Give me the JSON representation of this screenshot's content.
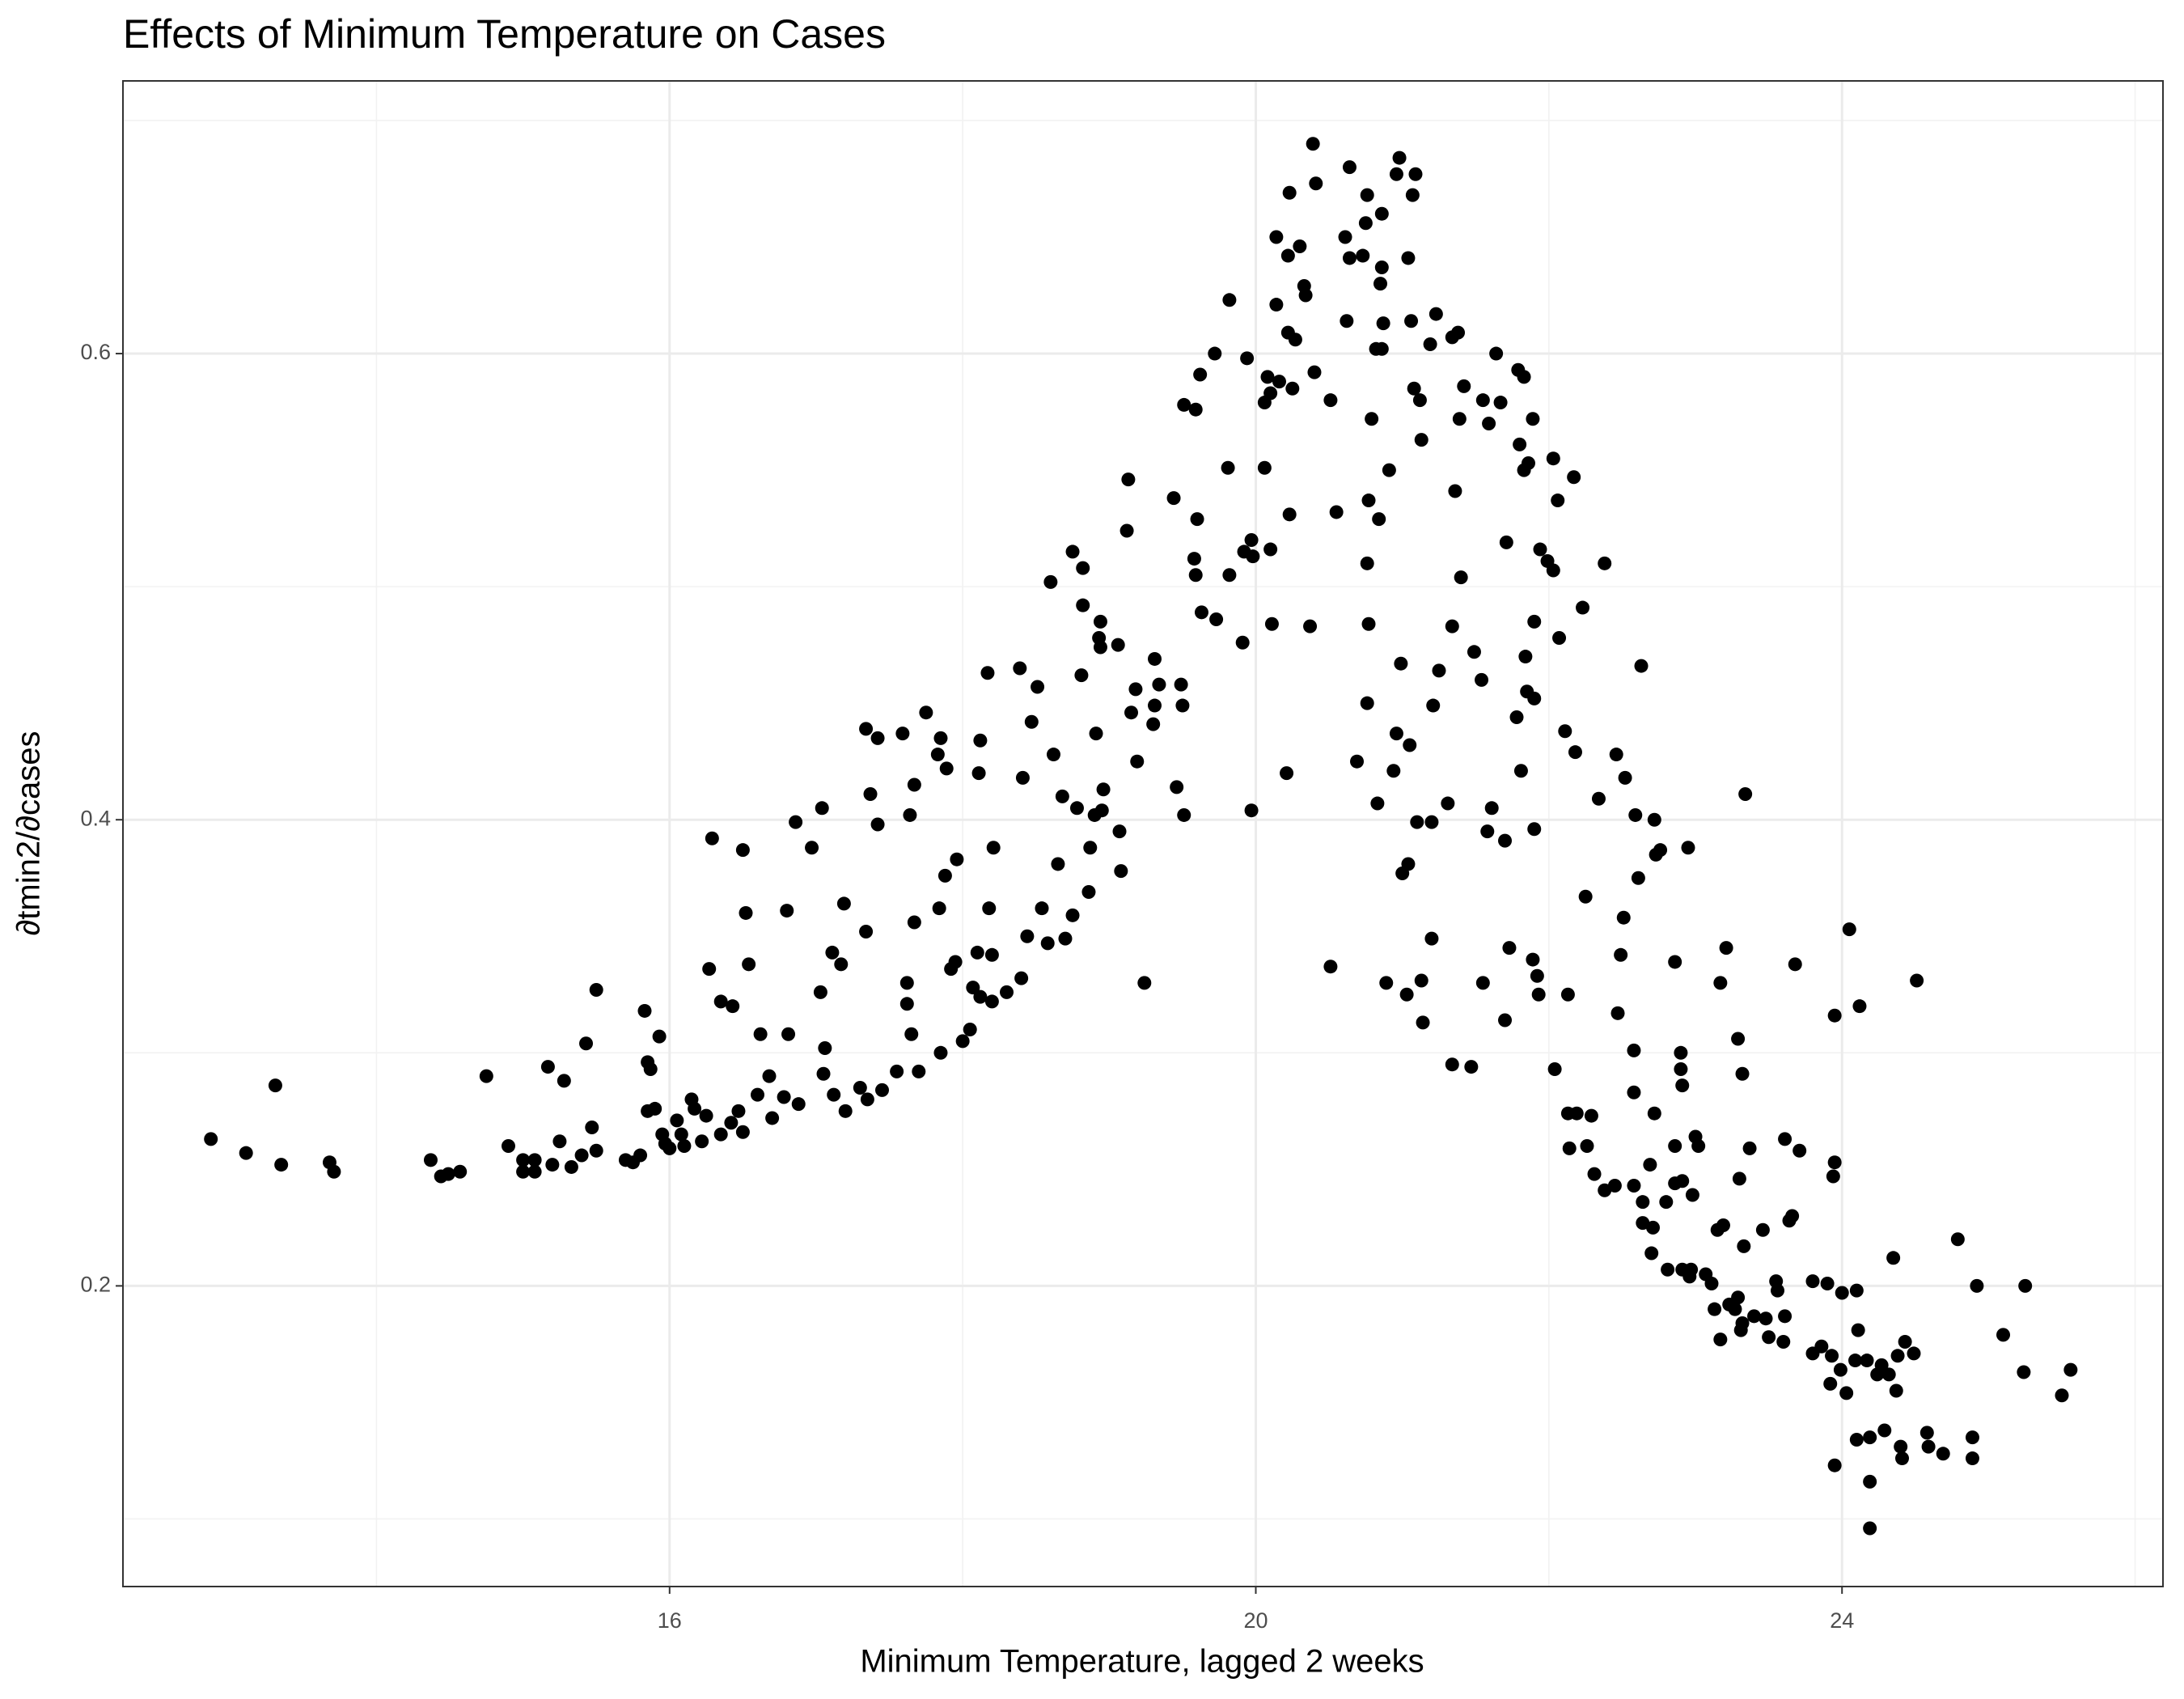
{
  "chart_data": {
    "type": "scatter",
    "title": "Effects of Minimum Temperature on Cases",
    "x_label": "Minimum Temperature, lagged 2 weeks",
    "y_label": "∂tmin2/∂cases",
    "color": "#000000",
    "grid": true,
    "xlim": [
      12.27,
      26.19
    ],
    "ylim": [
      0.071,
      0.717
    ],
    "xticks": [
      16,
      20,
      24
    ],
    "yticks": [
      0.2,
      0.4,
      0.6
    ],
    "x_minor_grid": [
      14,
      18,
      22,
      26
    ],
    "y_minor_grid": [
      0.1,
      0.3,
      0.5,
      0.7
    ],
    "x": [
      12.87,
      13.11,
      13.31,
      13.35,
      13.68,
      13.71,
      14.37,
      14.44,
      14.49,
      14.57,
      14.75,
      14.9,
      15.0,
      15.0,
      15.08,
      15.08,
      15.17,
      15.2,
      15.25,
      15.28,
      15.33,
      15.4,
      15.43,
      15.47,
      15.5,
      15.5,
      15.7,
      15.75,
      15.8,
      15.83,
      15.85,
      15.87,
      15.85,
      15.9,
      15.93,
      15.95,
      15.97,
      16.0,
      16.05,
      16.08,
      16.1,
      16.15,
      16.17,
      16.22,
      16.25,
      16.27,
      16.29,
      16.35,
      16.35,
      16.42,
      16.43,
      16.47,
      16.5,
      16.5,
      16.52,
      16.54,
      16.6,
      16.62,
      16.68,
      16.7,
      16.78,
      16.81,
      16.8,
      16.88,
      16.86,
      16.97,
      17.05,
      17.03,
      17.12,
      17.04,
      17.06,
      17.2,
      17.11,
      17.17,
      17.19,
      17.3,
      17.35,
      17.34,
      17.45,
      17.34,
      17.37,
      17.42,
      17.42,
      17.55,
      17.62,
      17.62,
      17.65,
      17.7,
      17.59,
      17.67,
      17.64,
      17.67,
      17.85,
      17.75,
      17.92,
      17.95,
      18.05,
      18.07,
      17.88,
      18.12,
      17.96,
      18.0,
      18.2,
      18.2,
      18.3,
      18.4,
      17.83,
      17.85,
      17.89,
      18.1,
      18.11,
      18.12,
      18.17,
      18.18,
      18.21,
      17.84,
      18.39,
      18.47,
      18.51,
      18.41,
      18.62,
      18.68,
      18.78,
      18.9,
      18.96,
      18.95,
      18.65,
      18.87,
      19.07,
      19.08,
      18.86,
      18.75,
      18.7,
      18.54,
      18.58,
      18.44,
      18.6,
      18.75,
      18.82,
      18.82,
      18.94,
      18.93,
      18.94,
      18.81,
      18.91,
      19.06,
      19.13,
      19.12,
      19.15,
      19.18,
      19.19,
      19.24,
      19.3,
      19.31,
      19.31,
      19.34,
      19.44,
      19.46,
      19.49,
      19.5,
      19.51,
      19.51,
      19.58,
      19.59,
      19.59,
      19.6,
      19.62,
      19.63,
      19.72,
      19.73,
      19.82,
      19.81,
      19.82,
      19.91,
      19.92,
      19.94,
      19.97,
      19.97,
      19.98,
      20.39,
      20.98,
      21.09,
      20.64,
      20.96,
      21.07,
      20.41,
      20.23,
      20.86,
      20.76,
      20.75,
      20.61,
      20.14,
      20.3,
      20.22,
      20.64,
      20.73,
      20.86,
      21.04,
      20.33,
      20.34,
      20.85,
      20.14,
      20.62,
      20.87,
      21.06,
      21.23,
      21.38,
      21.34,
      20.22,
      20.27,
      20.08,
      20.16,
      20.25,
      20.4,
      20.51,
      20.82,
      20.86,
      21.19,
      21.42,
      21.12,
      21.08,
      21.39,
      21.59,
      21.55,
      21.67,
      21.64,
      21.79,
      21.83,
      21.89,
      21.13,
      20.79,
      20.06,
      20.1,
      21.8,
      21.86,
      21.83,
      22.03,
      22.17,
      22.06,
      20.91,
      20.55,
      20.77,
      20.84,
      21.36,
      20.23,
      20.06,
      20.1,
      21.71,
      21.94,
      21.99,
      22.03,
      22.38,
      20.76,
      21.4,
      22.23,
      21.9,
      20.11,
      20.37,
      20.77,
      21.34,
      22.07,
      21.49,
      21.84,
      20.99,
      22.63,
      21.25,
      21.54,
      21.85,
      21.9,
      21.78,
      20.76,
      21.21,
      22.11,
      20.96,
      21.05,
      22.18,
      22.46,
      20.69,
      21.81,
      20.94,
      20.21,
      22.52,
      23.34,
      22.34,
      20.83,
      21.31,
      21.61,
      22.59,
      22.72,
      21.1,
      21.2,
      21.58,
      21.9,
      21.7,
      22.95,
      22.76,
      22.73,
      21.04,
      21.0,
      22.61,
      22.25,
      22.51,
      23.21,
      21.73,
      21.2,
      20.51,
      21.89,
      21.92,
      22.49,
      22.86,
      23.68,
      23.17,
      20.89,
      21.13,
      21.55,
      21.03,
      21.93,
      22.13,
      22.47,
      21.14,
      21.7,
      23.29,
      22.58,
      22.9,
      21.34,
      21.47,
      22.04,
      22.9,
      23.32,
      22.91,
      22.58,
      22.13,
      22.19,
      22.29,
      22.72,
      23.0,
      23.02,
      22.86,
      22.14,
      22.26,
      23.37,
      22.31,
      22.69,
      22.91,
      22.86,
      23.3,
      22.38,
      22.45,
      22.58,
      22.64,
      22.8,
      22.71,
      22.64,
      22.98,
      23.15,
      23.46,
      23.19,
      22.7,
      22.81,
      22.91,
      22.96,
      22.97,
      23.07,
      23.11,
      23.33,
      23.23,
      23.13,
      23.27,
      23.29,
      23.32,
      23.31,
      23.17,
      23.4,
      23.48,
      23.5,
      23.56,
      23.55,
      23.61,
      23.6,
      23.66,
      23.64,
      23.71,
      23.61,
      23.8,
      23.9,
      23.8,
      23.86,
      23.93,
      23.92,
      23.99,
      24.03,
      24.0,
      24.1,
      24.11,
      24.09,
      24.17,
      24.24,
      24.27,
      24.32,
      24.37,
      23.95,
      23.94,
      23.95,
      24.05,
      24.12,
      24.35,
      24.43,
      24.49,
      24.38,
      24.51,
      23.95,
      24.1,
      24.19,
      24.19,
      24.19,
      24.29,
      24.4,
      24.41,
      24.58,
      24.59,
      24.69,
      24.79,
      24.92,
      24.89,
      24.89,
      25.1,
      25.25,
      25.24,
      25.5,
      25.56
    ],
    "y": [
      0.263,
      0.257,
      0.286,
      0.252,
      0.253,
      0.249,
      0.254,
      0.247,
      0.248,
      0.249,
      0.29,
      0.26,
      0.254,
      0.249,
      0.249,
      0.254,
      0.294,
      0.252,
      0.262,
      0.288,
      0.251,
      0.256,
      0.304,
      0.268,
      0.327,
      0.258,
      0.254,
      0.253,
      0.256,
      0.318,
      0.296,
      0.293,
      0.275,
      0.276,
      0.307,
      0.265,
      0.261,
      0.259,
      0.271,
      0.265,
      0.26,
      0.28,
      0.276,
      0.262,
      0.273,
      0.336,
      0.392,
      0.265,
      0.322,
      0.27,
      0.32,
      0.275,
      0.266,
      0.387,
      0.36,
      0.338,
      0.282,
      0.308,
      0.29,
      0.272,
      0.281,
      0.308,
      0.361,
      0.278,
      0.399,
      0.388,
      0.291,
      0.326,
      0.282,
      0.405,
      0.302,
      0.275,
      0.343,
      0.338,
      0.364,
      0.285,
      0.28,
      0.352,
      0.284,
      0.439,
      0.411,
      0.398,
      0.435,
      0.292,
      0.321,
      0.33,
      0.308,
      0.292,
      0.437,
      0.356,
      0.402,
      0.415,
      0.3,
      0.446,
      0.336,
      0.339,
      0.31,
      0.328,
      0.376,
      0.324,
      0.383,
      0.305,
      0.342,
      0.322,
      0.326,
      0.332,
      0.428,
      0.435,
      0.422,
      0.343,
      0.42,
      0.434,
      0.463,
      0.362,
      0.388,
      0.362,
      0.465,
      0.442,
      0.457,
      0.418,
      0.428,
      0.41,
      0.405,
      0.402,
      0.413,
      0.404,
      0.381,
      0.388,
      0.395,
      0.378,
      0.369,
      0.359,
      0.349,
      0.362,
      0.347,
      0.35,
      0.502,
      0.515,
      0.508,
      0.492,
      0.485,
      0.478,
      0.474,
      0.462,
      0.437,
      0.475,
      0.546,
      0.524,
      0.446,
      0.456,
      0.425,
      0.33,
      0.441,
      0.469,
      0.449,
      0.458,
      0.538,
      0.414,
      0.458,
      0.449,
      0.402,
      0.578,
      0.512,
      0.576,
      0.505,
      0.529,
      0.591,
      0.489,
      0.6,
      0.486,
      0.505,
      0.551,
      0.623,
      0.476,
      0.515,
      0.598,
      0.52,
      0.404,
      0.513,
      0.69,
      0.684,
      0.677,
      0.68,
      0.677,
      0.668,
      0.673,
      0.669,
      0.66,
      0.668,
      0.656,
      0.65,
      0.65,
      0.646,
      0.642,
      0.641,
      0.642,
      0.637,
      0.641,
      0.629,
      0.625,
      0.63,
      0.621,
      0.614,
      0.613,
      0.614,
      0.617,
      0.609,
      0.607,
      0.609,
      0.606,
      0.59,
      0.588,
      0.585,
      0.592,
      0.58,
      0.602,
      0.602,
      0.604,
      0.586,
      0.58,
      0.585,
      0.572,
      0.57,
      0.58,
      0.579,
      0.6,
      0.593,
      0.59,
      0.572,
      0.563,
      0.572,
      0.579,
      0.583,
      0.561,
      0.553,
      0.55,
      0.555,
      0.547,
      0.537,
      0.55,
      0.532,
      0.537,
      0.529,
      0.541,
      0.531,
      0.551,
      0.516,
      0.519,
      0.516,
      0.511,
      0.507,
      0.51,
      0.51,
      0.504,
      0.491,
      0.485,
      0.484,
      0.483,
      0.484,
      0.483,
      0.478,
      0.472,
      0.47,
      0.467,
      0.466,
      0.464,
      0.46,
      0.455,
      0.452,
      0.444,
      0.45,
      0.449,
      0.438,
      0.437,
      0.432,
      0.429,
      0.428,
      0.425,
      0.421,
      0.421,
      0.42,
      0.418,
      0.411,
      0.409,
      0.407,
      0.407,
      0.405,
      0.402,
      0.4,
      0.399,
      0.399,
      0.395,
      0.396,
      0.391,
      0.388,
      0.387,
      0.385,
      0.381,
      0.377,
      0.375,
      0.367,
      0.358,
      0.345,
      0.345,
      0.349,
      0.337,
      0.34,
      0.333,
      0.342,
      0.339,
      0.338,
      0.33,
      0.33,
      0.331,
      0.33,
      0.325,
      0.325,
      0.325,
      0.317,
      0.313,
      0.314,
      0.306,
      0.301,
      0.3,
      0.295,
      0.294,
      0.293,
      0.293,
      0.291,
      0.286,
      0.283,
      0.274,
      0.274,
      0.273,
      0.274,
      0.264,
      0.26,
      0.26,
      0.259,
      0.26,
      0.259,
      0.248,
      0.252,
      0.245,
      0.244,
      0.246,
      0.241,
      0.243,
      0.243,
      0.236,
      0.236,
      0.225,
      0.227,
      0.239,
      0.224,
      0.224,
      0.226,
      0.214,
      0.207,
      0.207,
      0.204,
      0.207,
      0.205,
      0.201,
      0.217,
      0.192,
      0.19,
      0.19,
      0.195,
      0.184,
      0.181,
      0.177,
      0.187,
      0.186,
      0.178,
      0.198,
      0.202,
      0.187,
      0.176,
      0.23,
      0.228,
      0.258,
      0.263,
      0.202,
      0.201,
      0.171,
      0.174,
      0.17,
      0.158,
      0.164,
      0.154,
      0.197,
      0.198,
      0.181,
      0.168,
      0.168,
      0.162,
      0.166,
      0.162,
      0.155,
      0.253,
      0.247,
      0.316,
      0.353,
      0.32,
      0.212,
      0.176,
      0.171,
      0.17,
      0.331,
      0.123,
      0.134,
      0.135,
      0.116,
      0.096,
      0.138,
      0.131,
      0.126,
      0.137,
      0.131,
      0.128,
      0.22,
      0.2,
      0.135,
      0.126,
      0.179,
      0.2,
      0.163,
      0.153,
      0.164
    ]
  }
}
